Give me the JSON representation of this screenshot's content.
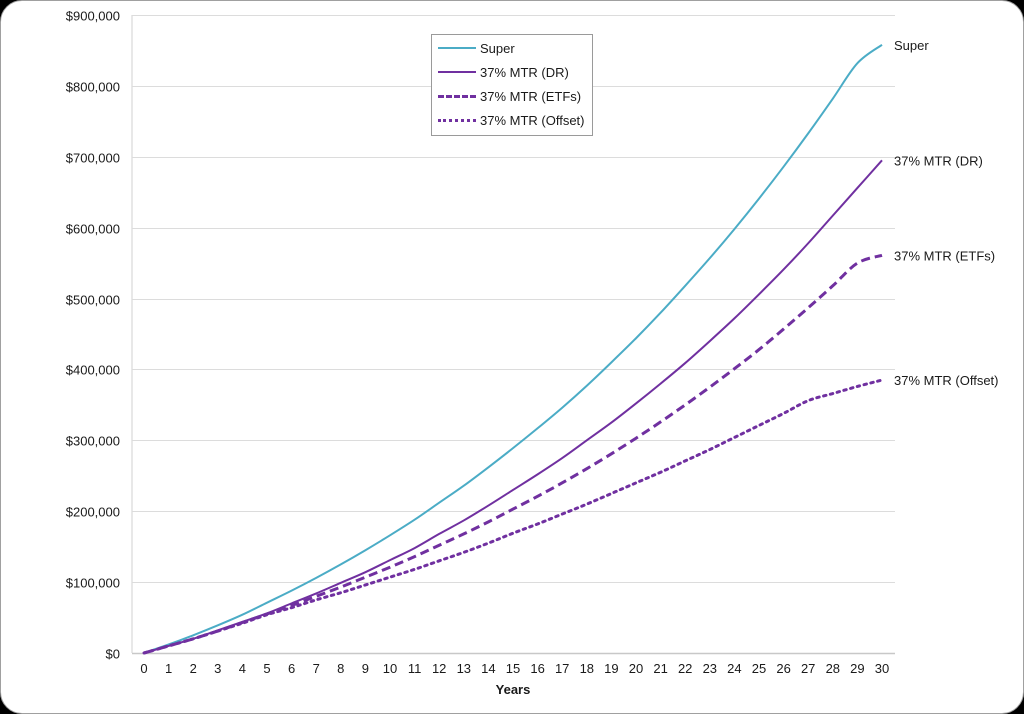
{
  "chart_data": {
    "type": "line",
    "title": "",
    "xlabel": "Years",
    "ylabel": "",
    "ylim": [
      0,
      900000
    ],
    "xlim": [
      0,
      30
    ],
    "grid": true,
    "legend_position": "top-center",
    "x": [
      0,
      1,
      2,
      3,
      4,
      5,
      6,
      7,
      8,
      9,
      10,
      11,
      12,
      13,
      14,
      15,
      16,
      17,
      18,
      19,
      20,
      21,
      22,
      23,
      24,
      25,
      26,
      27,
      28,
      29,
      30
    ],
    "y_ticks": [
      "$0",
      "$100,000",
      "$200,000",
      "$300,000",
      "$400,000",
      "$500,000",
      "$600,000",
      "$700,000",
      "$800,000",
      "$900,000"
    ],
    "x_ticks": [
      "0",
      "1",
      "2",
      "3",
      "4",
      "5",
      "6",
      "7",
      "8",
      "9",
      "10",
      "11",
      "12",
      "13",
      "14",
      "15",
      "16",
      "17",
      "18",
      "19",
      "20",
      "21",
      "22",
      "23",
      "24",
      "25",
      "26",
      "27",
      "28",
      "29",
      "30"
    ],
    "series": [
      {
        "name": "Super",
        "style": "solid",
        "color": "#4bacc6",
        "end_label": "Super",
        "values": [
          0,
          12000,
          25000,
          39000,
          54000,
          71000,
          88000,
          106000,
          125000,
          145000,
          166000,
          188000,
          212000,
          236000,
          262000,
          289000,
          317000,
          346000,
          377000,
          410000,
          444000,
          480000,
          518000,
          557000,
          598000,
          641000,
          686000,
          733000,
          782000,
          832000,
          858000
        ]
      },
      {
        "name": "37% MTR (DR)",
        "style": "solid",
        "color": "#7030a0",
        "end_label": "37% MTR (DR)",
        "values": [
          0,
          10000,
          20000,
          32000,
          44000,
          56000,
          70000,
          84000,
          99000,
          114000,
          131000,
          148000,
          168000,
          187000,
          208000,
          230000,
          252000,
          275000,
          300000,
          325000,
          352000,
          380000,
          409000,
          440000,
          472000,
          506000,
          541000,
          578000,
          617000,
          656000,
          695000
        ]
      },
      {
        "name": "37% MTR (ETFs)",
        "style": "dashed",
        "color": "#7030a0",
        "end_label": "37% MTR (ETFs)",
        "values": [
          0,
          10000,
          20000,
          31000,
          43000,
          55000,
          67000,
          80000,
          93000,
          107000,
          121000,
          136000,
          152000,
          168000,
          185000,
          203000,
          221000,
          240000,
          260000,
          281000,
          303000,
          326000,
          350000,
          375000,
          401000,
          428000,
          457000,
          487000,
          518000,
          550000,
          561000
        ]
      },
      {
        "name": "37% MTR (Offset)",
        "style": "dotted",
        "color": "#7030a0",
        "end_label": "37% MTR (Offset)",
        "values": [
          0,
          10000,
          20000,
          31000,
          42000,
          54000,
          64000,
          75000,
          85000,
          96000,
          107000,
          118000,
          130000,
          142000,
          155000,
          169000,
          182000,
          196000,
          210000,
          225000,
          240000,
          255000,
          271000,
          287000,
          304000,
          321000,
          338000,
          356000,
          366000,
          376000,
          385000
        ]
      }
    ]
  },
  "legend": {
    "items": [
      {
        "label": "Super"
      },
      {
        "label": "37% MTR (DR)"
      },
      {
        "label": "37% MTR (ETFs)"
      },
      {
        "label": "37% MTR (Offset)"
      }
    ]
  }
}
